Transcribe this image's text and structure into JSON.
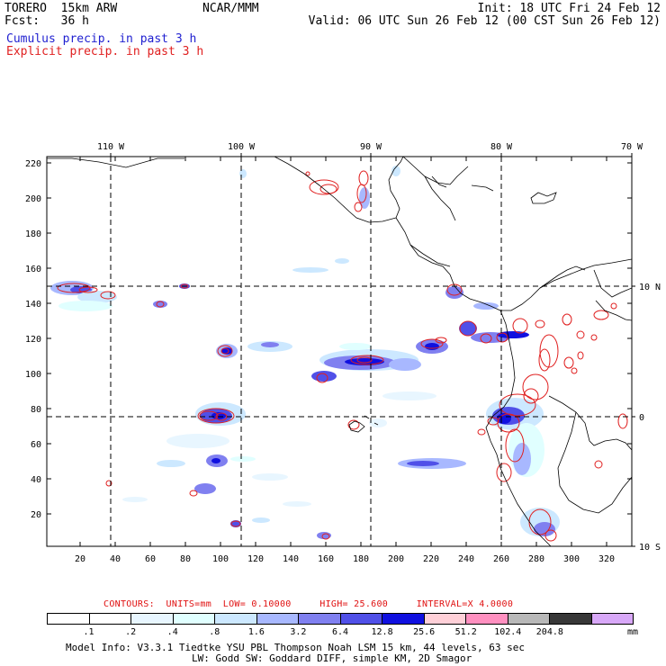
{
  "header": {
    "model": "TORERO  15km ARW",
    "forecast": "Fcst:   36 h",
    "org": "NCAR/MMM",
    "init": "Init: 18 UTC Fri 24 Feb 12",
    "valid": "Valid: 06 UTC Sun 26 Feb 12 (00 CST Sun 26 Feb 12)"
  },
  "legend": {
    "cumulus": "Cumulus precip. in past 3 h",
    "explicit": "Explicit precip. in past 3 h",
    "cumulus_color": "#1f1fd0",
    "explicit_color": "#e02020"
  },
  "map": {
    "top_lon_labels": [
      "110 W",
      "100 W",
      "90 W",
      "80 W",
      "70 W"
    ],
    "right_lat_labels": [
      "10 N",
      "0",
      "10 S"
    ],
    "y_ticks": [
      "20",
      "40",
      "60",
      "80",
      "100",
      "120",
      "140",
      "160",
      "180",
      "200",
      "220"
    ],
    "x_ticks": [
      "20",
      "40",
      "60",
      "80",
      "100",
      "120",
      "140",
      "160",
      "180",
      "200",
      "220",
      "240",
      "260",
      "280",
      "300",
      "320"
    ],
    "grid_style": "dashed",
    "coastline_color": "#000000"
  },
  "contours": {
    "label": "CONTOURS:",
    "units": "UNITS=mm",
    "low": "LOW= 0.10000",
    "high": "HIGH=  25.600",
    "interval": "INTERVAL=X  4.0000"
  },
  "colorbar": {
    "colors": [
      "#ffffff",
      "#ffffff",
      "#e8f6ff",
      "#e0ffff",
      "#cce8ff",
      "#a8b8ff",
      "#8080f0",
      "#5050e8",
      "#1010e0",
      "#ffd0d8",
      "#ff90c0",
      "#b8b8b8",
      "#383838",
      "#d8a8f8"
    ],
    "labels": [
      ".1",
      ".2",
      ".4",
      ".8",
      "1.6",
      "3.2",
      "6.4",
      "12.8",
      "25.6",
      "51.2",
      "102.4",
      "204.8"
    ],
    "unit": "mm"
  },
  "model_info": {
    "line1": "Model Info: V3.3.1   Tiedtke YSU PBL  Thompson    Noah LSM  15 km,   44 levels,   63 sec",
    "line2": "LW: Godd SW: Goddard DIFF, simple KM, 2D Smagor"
  }
}
